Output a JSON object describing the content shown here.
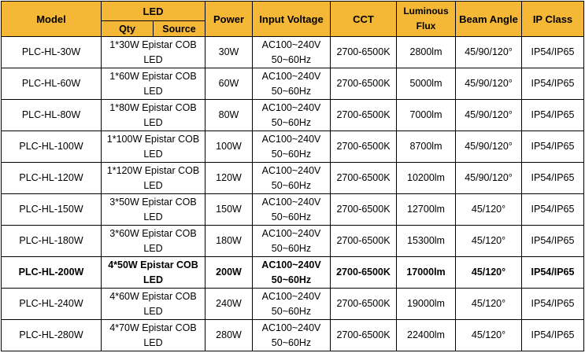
{
  "header": {
    "model": "Model",
    "led": "LED",
    "qty": "Qty",
    "source": "Source",
    "power": "Power",
    "input_voltage": "Input Voltage",
    "cct": "CCT",
    "luminous_line1": "Luminous",
    "luminous_line2": "Flux",
    "beam_angle": "Beam Angle",
    "ip_class": "IP Class"
  },
  "colors": {
    "header_bg": "#f5b736",
    "border": "#000000"
  },
  "rows": [
    {
      "model": "PLC-HL-30W",
      "led_line1": "1*30W Epistar COB",
      "led_line2": "LED",
      "power": "30W",
      "voltage_line1": "AC100~240V",
      "voltage_line2": "50~60Hz",
      "cct": "2700-6500K",
      "flux": "2800lm",
      "beam": "45/90/120°",
      "ip": "IP54/IP65",
      "bold": false
    },
    {
      "model": "PLC-HL-60W",
      "led_line1": "1*60W Epistar COB",
      "led_line2": "LED",
      "power": "60W",
      "voltage_line1": "AC100~240V",
      "voltage_line2": "50~60Hz",
      "cct": "2700-6500K",
      "flux": "5000lm",
      "beam": "45/90/120°",
      "ip": "IP54/IP65",
      "bold": false
    },
    {
      "model": "PLC-HL-80W",
      "led_line1": "1*80W Epistar COB",
      "led_line2": "LED",
      "power": "80W",
      "voltage_line1": "AC100~240V",
      "voltage_line2": "50~60Hz",
      "cct": "2700-6500K",
      "flux": "7000lm",
      "beam": "45/90/120°",
      "ip": "IP54/IP65",
      "bold": false
    },
    {
      "model": "PLC-HL-100W",
      "led_line1": "1*100W Epistar COB",
      "led_line2": "LED",
      "power": "100W",
      "voltage_line1": "AC100~240V",
      "voltage_line2": "50~60Hz",
      "cct": "2700-6500K",
      "flux": "8700lm",
      "beam": "45/90/120°",
      "ip": "IP54/IP65",
      "bold": false
    },
    {
      "model": "PLC-HL-120W",
      "led_line1": "1*120W Epistar COB",
      "led_line2": "LED",
      "power": "120W",
      "voltage_line1": "AC100~240V",
      "voltage_line2": "50~60Hz",
      "cct": "2700-6500K",
      "flux": "10200lm",
      "beam": "45/90/120°",
      "ip": "IP54/IP65",
      "bold": false
    },
    {
      "model": "PLC-HL-150W",
      "led_line1": "3*50W Epistar COB",
      "led_line2": "LED",
      "power": "150W",
      "voltage_line1": "AC100~240V",
      "voltage_line2": "50~60Hz",
      "cct": "2700-6500K",
      "flux": "12700lm",
      "beam": "45/120°",
      "ip": "IP54/IP65",
      "bold": false
    },
    {
      "model": "PLC-HL-180W",
      "led_line1": "3*60W Epistar COB",
      "led_line2": "LED",
      "power": "180W",
      "voltage_line1": "AC100~240V",
      "voltage_line2": "50~60Hz",
      "cct": "2700-6500K",
      "flux": "15300lm",
      "beam": "45/120°",
      "ip": "IP54/IP65",
      "bold": false
    },
    {
      "model": "PLC-HL-200W",
      "led_line1": "4*50W  Epistar COB",
      "led_line2": "LED",
      "power": "200W",
      "voltage_line1": "AC100~240V",
      "voltage_line2": "50~60Hz",
      "cct": "2700-6500K",
      "flux": "17000lm",
      "beam": "45/120°",
      "ip": "IP54/IP65",
      "bold": true
    },
    {
      "model": "PLC-HL-240W",
      "led_line1": "4*60W  Epistar COB",
      "led_line2": "LED",
      "power": "240W",
      "voltage_line1": "AC100~240V",
      "voltage_line2": "50~60Hz",
      "cct": "2700-6500K",
      "flux": "19000lm",
      "beam": "45/120°",
      "ip": "IP54/IP65",
      "bold": false
    },
    {
      "model": "PLC-HL-280W",
      "led_line1": "4*70W  Epistar COB",
      "led_line2": "LED",
      "power": "280W",
      "voltage_line1": "AC100~240V",
      "voltage_line2": "50~60Hz",
      "cct": "2700-6500K",
      "flux": "22400lm",
      "beam": "45/120°",
      "ip": "IP54/IP65",
      "bold": false
    }
  ]
}
